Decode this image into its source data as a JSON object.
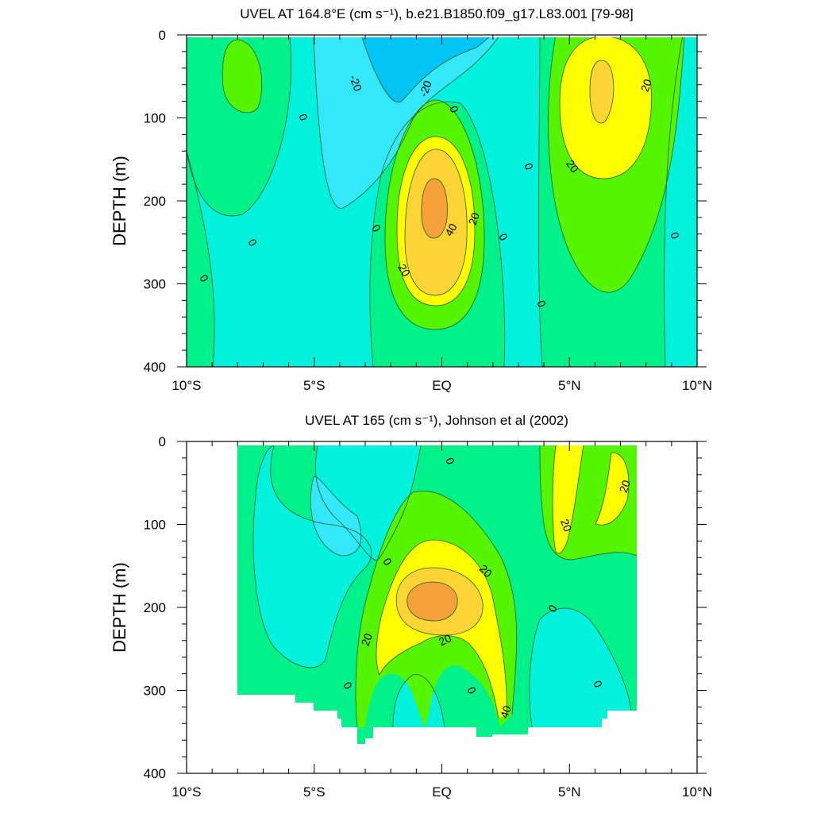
{
  "panels": [
    {
      "title": "UVEL AT 164.8°E (cm s⁻¹), b.e21.B1850.f09_g17.L83.001 [79-98]",
      "ylabel": "DEPTH (m)",
      "x_tick_labels": [
        "10°S",
        "5°S",
        "EQ",
        "5°N",
        "10°N"
      ],
      "y_tick_labels": [
        "0",
        "100",
        "200",
        "300",
        "400"
      ]
    },
    {
      "title": "UVEL AT 165 (cm s⁻¹), Johnson et al (2002)",
      "ylabel": "DEPTH (m)",
      "x_tick_labels": [
        "10°S",
        "5°S",
        "EQ",
        "5°N",
        "10°N"
      ],
      "y_tick_labels": [
        "0",
        "100",
        "200",
        "300",
        "400"
      ]
    }
  ],
  "colors": {
    "lt_minus20": "#00c4f4",
    "minus20_to_minus10": "#33e8fa",
    "minus10_to_0": "#00f2dd",
    "0_to_10": "#00f08a",
    "10_to_20": "#55f500",
    "20_to_30": "#ffff00",
    "30_to_40": "#fcd535",
    "gt_40": "#f7a13a",
    "contour_line": "#2d5a2a"
  },
  "chart_data": [
    {
      "type": "heatmap",
      "title": "UVEL AT 164.8°E (cm s⁻¹), b.e21.B1850.f09_g17.L83.001 [79-98]",
      "xlabel": "",
      "ylabel": "DEPTH (m)",
      "x_ticks": [
        -10,
        -5,
        0,
        5,
        10
      ],
      "x_tick_labels": [
        "10°S",
        "5°S",
        "EQ",
        "5°N",
        "10°N"
      ],
      "xlim": [
        -10,
        10
      ],
      "y_ticks": [
        0,
        100,
        200,
        300,
        400
      ],
      "ylim": [
        400,
        0
      ],
      "y_inverted": true,
      "contour_interval": 10,
      "contour_labels": [
        "-20",
        "-20",
        "0",
        "0",
        "0",
        "0",
        "0",
        "0",
        "0",
        "0",
        "0",
        "20",
        "20",
        "20",
        "20",
        "40"
      ],
      "features": [
        {
          "name": "surface westward flow",
          "lat": -1.5,
          "depth": 40,
          "peak": -25
        },
        {
          "name": "Equatorial Undercurrent core",
          "lat": 0,
          "depth": 210,
          "peak": 45
        },
        {
          "name": "North Equatorial Countercurrent",
          "lat": 6.5,
          "depth": 70,
          "peak": 32
        },
        {
          "name": "South Equatorial Countercurrent",
          "lat": -7.9,
          "depth": 50,
          "peak": 12
        }
      ]
    },
    {
      "type": "heatmap",
      "title": "UVEL AT 165 (cm s⁻¹), Johnson et al (2002)",
      "xlabel": "",
      "ylabel": "DEPTH (m)",
      "x_ticks": [
        -10,
        -5,
        0,
        5,
        10
      ],
      "x_tick_labels": [
        "10°S",
        "5°S",
        "EQ",
        "5°N",
        "10°N"
      ],
      "xlim": [
        -10,
        10
      ],
      "y_ticks": [
        0,
        100,
        200,
        300,
        400
      ],
      "ylim": [
        400,
        0
      ],
      "y_inverted": true,
      "data_extent_lat": [
        -8,
        8
      ],
      "contour_interval": 10,
      "contour_labels": [
        "0",
        "0",
        "0",
        "0",
        "0",
        "0",
        "20",
        "20",
        "20",
        "20",
        "20",
        "40"
      ],
      "features": [
        {
          "name": "Equatorial Undercurrent core",
          "lat": -0.3,
          "depth": 185,
          "peak": 42
        },
        {
          "name": "North Equatorial Countercurrent",
          "lat": 5.3,
          "depth": 60,
          "peak": 25
        },
        {
          "name": "northern countercurrent",
          "lat": 7.3,
          "depth": 60,
          "peak": 22
        }
      ]
    }
  ]
}
